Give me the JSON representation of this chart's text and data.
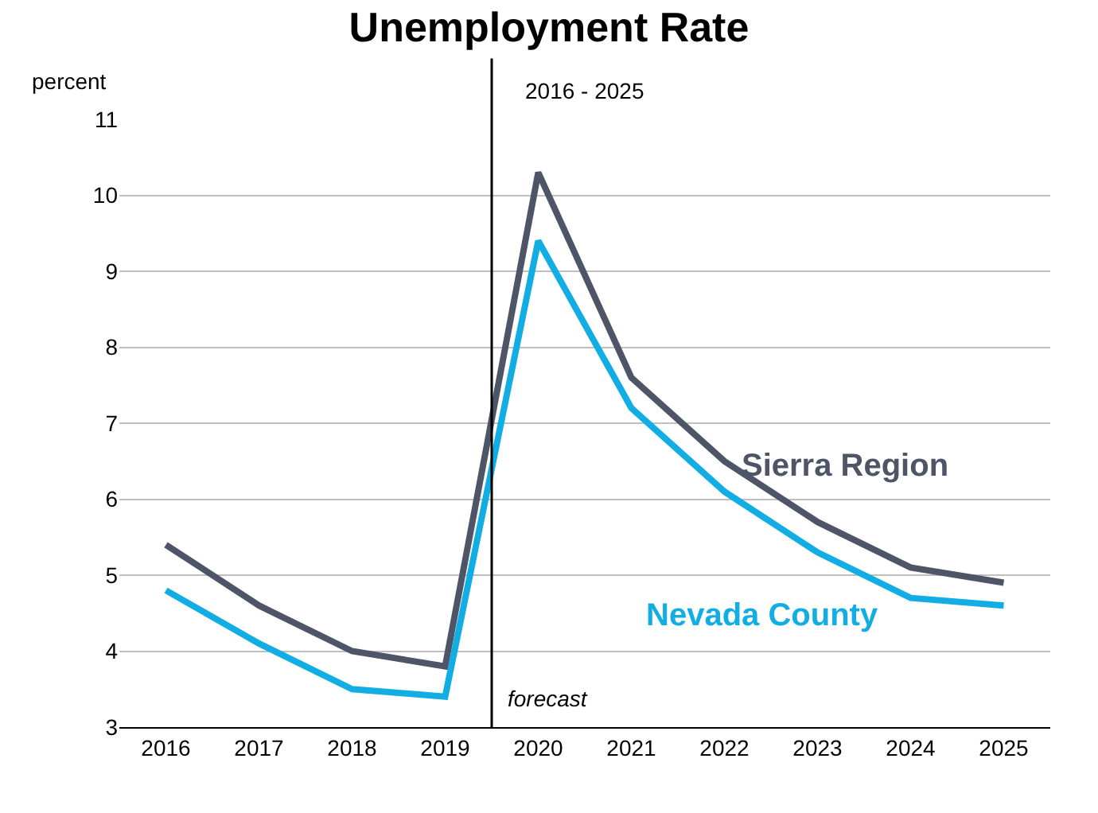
{
  "chart_data": {
    "type": "line",
    "title": "Unemployment Rate",
    "subtitle": "2016 - 2025",
    "ylabel": "percent",
    "x": [
      2016,
      2017,
      2018,
      2019,
      2020,
      2021,
      2022,
      2023,
      2024,
      2025
    ],
    "series": [
      {
        "name": "Sierra Region",
        "color": "#4d5566",
        "values": [
          5.4,
          4.6,
          4.0,
          3.8,
          10.3,
          7.6,
          6.5,
          5.7,
          5.1,
          4.9
        ]
      },
      {
        "name": "Nevada County",
        "color": "#12aee3",
        "values": [
          4.8,
          4.1,
          3.5,
          3.4,
          9.4,
          7.2,
          6.1,
          5.3,
          4.7,
          4.6
        ]
      }
    ],
    "xlim": [
      2015.5,
      2025.5
    ],
    "xticks": [
      2016,
      2017,
      2018,
      2019,
      2020,
      2021,
      2022,
      2023,
      2024,
      2025
    ],
    "ylim": [
      3,
      11
    ],
    "yticks": [
      3,
      4,
      5,
      6,
      7,
      8,
      9,
      10,
      11
    ],
    "grid": "y",
    "legend": false,
    "marker": "none",
    "line_style": "solid",
    "ref_lines": [
      {
        "axis": "x",
        "value": 2019.5,
        "label": "forecast",
        "color": "#000000"
      }
    ]
  }
}
